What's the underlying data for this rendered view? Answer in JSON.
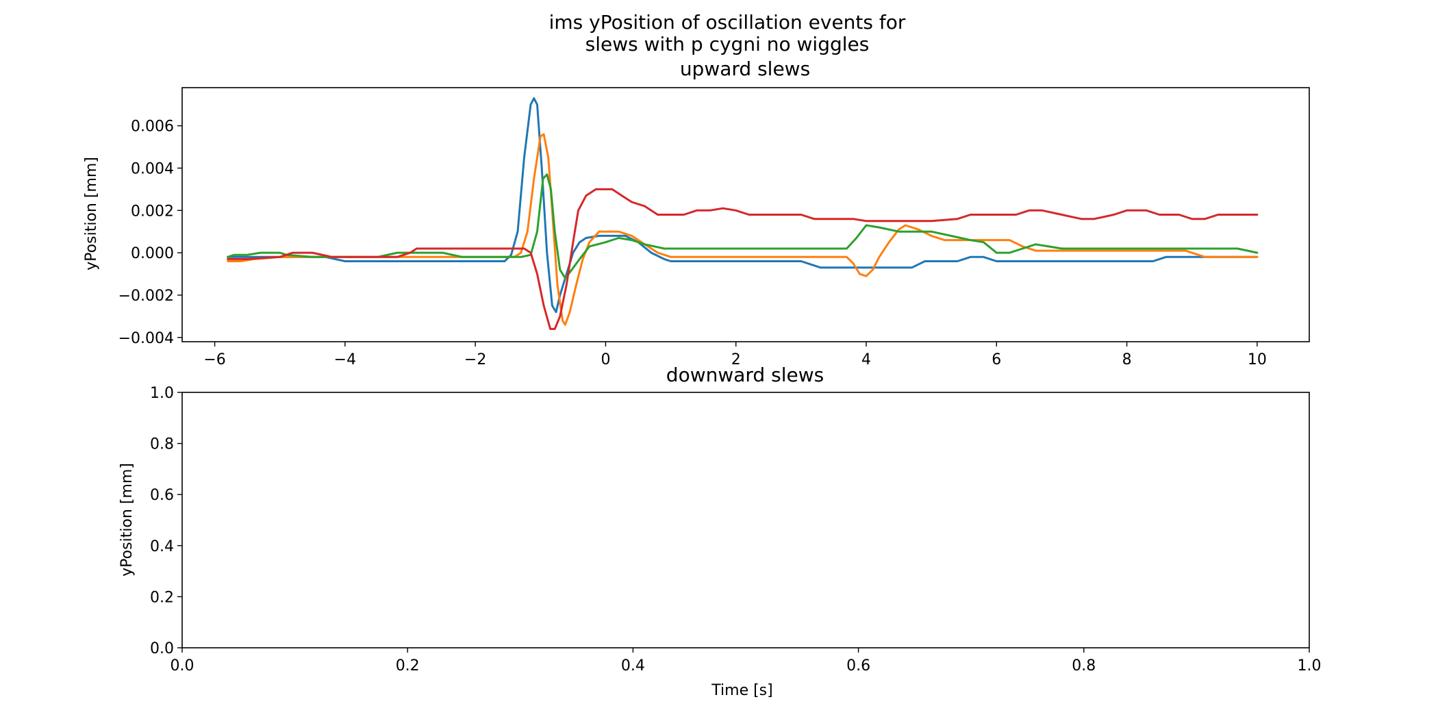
{
  "figure": {
    "title_line1": "ims yPosition of oscillation events for",
    "title_line2": "slews with p cygni no wiggles"
  },
  "chart_data": [
    {
      "type": "line",
      "title": "upward slews",
      "xlabel": "",
      "ylabel": "yPosition [mm]",
      "xlim": [
        -6.5,
        10.8
      ],
      "ylim": [
        -0.0042,
        0.0078
      ],
      "x_ticks": [
        -6,
        -4,
        -2,
        0,
        2,
        4,
        6,
        8,
        10
      ],
      "x_tick_labels": [
        "−6",
        "−4",
        "−2",
        "0",
        "2",
        "4",
        "6",
        "8",
        "10"
      ],
      "y_ticks": [
        -0.004,
        -0.002,
        0.0,
        0.002,
        0.004,
        0.006
      ],
      "y_tick_labels": [
        "−0.004",
        "−0.002",
        "0.000",
        "0.002",
        "0.004",
        "0.006"
      ],
      "grid": false,
      "series": [
        {
          "color": "#1f77b4",
          "points": [
            [
              -5.8,
              -0.0002
            ],
            [
              -5.7,
              -0.0002
            ],
            [
              -5.0,
              -0.0002
            ],
            [
              -4.3,
              -0.0002
            ],
            [
              -4.0,
              -0.0004
            ],
            [
              -3.0,
              -0.0004
            ],
            [
              -2.0,
              -0.0004
            ],
            [
              -1.55,
              -0.0004
            ],
            [
              -1.45,
              -0.0001
            ],
            [
              -1.35,
              0.001
            ],
            [
              -1.25,
              0.0045
            ],
            [
              -1.15,
              0.007
            ],
            [
              -1.1,
              0.0073
            ],
            [
              -1.05,
              0.007
            ],
            [
              -0.98,
              0.004
            ],
            [
              -0.9,
              0.0
            ],
            [
              -0.82,
              -0.0025
            ],
            [
              -0.76,
              -0.0028
            ],
            [
              -0.7,
              -0.002
            ],
            [
              -0.6,
              -0.001
            ],
            [
              -0.5,
              0.0
            ],
            [
              -0.4,
              0.0005
            ],
            [
              -0.3,
              0.0007
            ],
            [
              -0.1,
              0.0008
            ],
            [
              0.3,
              0.0008
            ],
            [
              0.5,
              0.0005
            ],
            [
              0.7,
              0.0
            ],
            [
              0.9,
              -0.0003
            ],
            [
              1.0,
              -0.0004
            ],
            [
              2.0,
              -0.0004
            ],
            [
              3.0,
              -0.0004
            ],
            [
              3.3,
              -0.0007
            ],
            [
              4.0,
              -0.0007
            ],
            [
              4.7,
              -0.0007
            ],
            [
              4.9,
              -0.0004
            ],
            [
              5.4,
              -0.0004
            ],
            [
              5.6,
              -0.0002
            ],
            [
              5.8,
              -0.0002
            ],
            [
              6.0,
              -0.0004
            ],
            [
              7.0,
              -0.0004
            ],
            [
              8.0,
              -0.0004
            ],
            [
              8.4,
              -0.0004
            ],
            [
              8.6,
              -0.0002
            ],
            [
              10.0,
              -0.0002
            ]
          ]
        },
        {
          "color": "#ff7f0e",
          "points": [
            [
              -5.8,
              -0.0004
            ],
            [
              -5.6,
              -0.0004
            ],
            [
              -5.4,
              -0.0003
            ],
            [
              -5.0,
              -0.0002
            ],
            [
              -4.0,
              -0.0002
            ],
            [
              -3.0,
              -0.0002
            ],
            [
              -2.0,
              -0.0002
            ],
            [
              -1.4,
              -0.0002
            ],
            [
              -1.3,
              0.0
            ],
            [
              -1.2,
              0.001
            ],
            [
              -1.1,
              0.0035
            ],
            [
              -1.0,
              0.0055
            ],
            [
              -0.95,
              0.0056
            ],
            [
              -0.88,
              0.0045
            ],
            [
              -0.82,
              0.002
            ],
            [
              -0.74,
              -0.0015
            ],
            [
              -0.66,
              -0.0032
            ],
            [
              -0.62,
              -0.0034
            ],
            [
              -0.55,
              -0.0028
            ],
            [
              -0.45,
              -0.0015
            ],
            [
              -0.35,
              -0.0003
            ],
            [
              -0.25,
              0.0005
            ],
            [
              -0.1,
              0.001
            ],
            [
              0.2,
              0.001
            ],
            [
              0.4,
              0.0008
            ],
            [
              0.6,
              0.0004
            ],
            [
              0.8,
              0.0
            ],
            [
              1.0,
              -0.0002
            ],
            [
              2.0,
              -0.0002
            ],
            [
              3.0,
              -0.0002
            ],
            [
              3.7,
              -0.0002
            ],
            [
              3.8,
              -0.0005
            ],
            [
              3.9,
              -0.001
            ],
            [
              4.0,
              -0.0011
            ],
            [
              4.1,
              -0.0008
            ],
            [
              4.2,
              -0.0002
            ],
            [
              4.35,
              0.0005
            ],
            [
              4.5,
              0.0011
            ],
            [
              4.6,
              0.0013
            ],
            [
              4.8,
              0.0011
            ],
            [
              5.0,
              0.0008
            ],
            [
              5.2,
              0.0006
            ],
            [
              5.6,
              0.0006
            ],
            [
              6.2,
              0.0006
            ],
            [
              6.4,
              0.0003
            ],
            [
              6.6,
              0.0001
            ],
            [
              7.0,
              0.0001
            ],
            [
              8.0,
              0.0001
            ],
            [
              8.9,
              0.0001
            ],
            [
              9.2,
              -0.0002
            ],
            [
              10.0,
              -0.0002
            ]
          ]
        },
        {
          "color": "#2ca02c",
          "points": [
            [
              -5.8,
              -0.0002
            ],
            [
              -5.7,
              -0.0001
            ],
            [
              -5.5,
              -0.0001
            ],
            [
              -5.3,
              0.0
            ],
            [
              -5.0,
              0.0
            ],
            [
              -4.9,
              -0.0001
            ],
            [
              -4.5,
              -0.0002
            ],
            [
              -4.0,
              -0.0002
            ],
            [
              -3.5,
              -0.0002
            ],
            [
              -3.2,
              0.0
            ],
            [
              -2.5,
              0.0
            ],
            [
              -2.2,
              -0.0002
            ],
            [
              -1.8,
              -0.0002
            ],
            [
              -1.3,
              -0.0002
            ],
            [
              -1.15,
              -0.0001
            ],
            [
              -1.05,
              0.001
            ],
            [
              -0.96,
              0.0035
            ],
            [
              -0.9,
              0.0037
            ],
            [
              -0.84,
              0.003
            ],
            [
              -0.78,
              0.001
            ],
            [
              -0.7,
              -0.0008
            ],
            [
              -0.62,
              -0.0012
            ],
            [
              -0.52,
              -0.0008
            ],
            [
              -0.4,
              -0.0003
            ],
            [
              -0.25,
              0.0003
            ],
            [
              0.0,
              0.0005
            ],
            [
              0.2,
              0.0007
            ],
            [
              0.4,
              0.0006
            ],
            [
              0.6,
              0.0004
            ],
            [
              0.9,
              0.0002
            ],
            [
              2.0,
              0.0002
            ],
            [
              3.0,
              0.0002
            ],
            [
              3.7,
              0.0002
            ],
            [
              3.85,
              0.0007
            ],
            [
              4.0,
              0.0013
            ],
            [
              4.2,
              0.0012
            ],
            [
              4.5,
              0.001
            ],
            [
              5.0,
              0.001
            ],
            [
              5.3,
              0.0008
            ],
            [
              5.6,
              0.0006
            ],
            [
              5.8,
              0.0005
            ],
            [
              6.0,
              0.0
            ],
            [
              6.2,
              0.0
            ],
            [
              6.4,
              0.0002
            ],
            [
              6.6,
              0.0004
            ],
            [
              6.8,
              0.0003
            ],
            [
              7.0,
              0.0002
            ],
            [
              8.0,
              0.0002
            ],
            [
              9.0,
              0.0002
            ],
            [
              9.7,
              0.0002
            ],
            [
              10.0,
              0.0
            ]
          ]
        },
        {
          "color": "#d62728",
          "points": [
            [
              -5.8,
              -0.0003
            ],
            [
              -5.5,
              -0.0003
            ],
            [
              -5.0,
              -0.0002
            ],
            [
              -4.8,
              0.0
            ],
            [
              -4.5,
              0.0
            ],
            [
              -4.2,
              -0.0002
            ],
            [
              -3.5,
              -0.0002
            ],
            [
              -3.2,
              -0.0002
            ],
            [
              -3.0,
              0.0
            ],
            [
              -2.9,
              0.0002
            ],
            [
              -2.5,
              0.0002
            ],
            [
              -2.0,
              0.0002
            ],
            [
              -1.5,
              0.0002
            ],
            [
              -1.25,
              0.0002
            ],
            [
              -1.15,
              0.0
            ],
            [
              -1.05,
              -0.001
            ],
            [
              -0.95,
              -0.0025
            ],
            [
              -0.85,
              -0.0036
            ],
            [
              -0.78,
              -0.0036
            ],
            [
              -0.7,
              -0.003
            ],
            [
              -0.6,
              -0.0015
            ],
            [
              -0.5,
              0.0005
            ],
            [
              -0.42,
              0.002
            ],
            [
              -0.3,
              0.0027
            ],
            [
              -0.15,
              0.003
            ],
            [
              0.1,
              0.003
            ],
            [
              0.25,
              0.0027
            ],
            [
              0.4,
              0.0024
            ],
            [
              0.6,
              0.0022
            ],
            [
              0.8,
              0.0018
            ],
            [
              1.2,
              0.0018
            ],
            [
              1.4,
              0.002
            ],
            [
              1.6,
              0.002
            ],
            [
              1.8,
              0.0021
            ],
            [
              2.0,
              0.002
            ],
            [
              2.2,
              0.0018
            ],
            [
              3.0,
              0.0018
            ],
            [
              3.2,
              0.0016
            ],
            [
              3.8,
              0.0016
            ],
            [
              4.0,
              0.0015
            ],
            [
              5.0,
              0.0015
            ],
            [
              5.4,
              0.0016
            ],
            [
              5.6,
              0.0018
            ],
            [
              6.0,
              0.0018
            ],
            [
              6.3,
              0.0018
            ],
            [
              6.5,
              0.002
            ],
            [
              6.7,
              0.002
            ],
            [
              7.0,
              0.0018
            ],
            [
              7.3,
              0.0016
            ],
            [
              7.5,
              0.0016
            ],
            [
              7.8,
              0.0018
            ],
            [
              8.0,
              0.002
            ],
            [
              8.3,
              0.002
            ],
            [
              8.5,
              0.0018
            ],
            [
              8.8,
              0.0018
            ],
            [
              9.0,
              0.0016
            ],
            [
              9.2,
              0.0016
            ],
            [
              9.4,
              0.0018
            ],
            [
              10.0,
              0.0018
            ]
          ]
        }
      ]
    },
    {
      "type": "line",
      "title": "downward slews",
      "xlabel": "Time [s]",
      "ylabel": "yPosition [mm]",
      "xlim": [
        0.0,
        1.0
      ],
      "ylim": [
        0.0,
        1.0
      ],
      "x_ticks": [
        0.0,
        0.2,
        0.4,
        0.6,
        0.8,
        1.0
      ],
      "x_tick_labels": [
        "0.0",
        "0.2",
        "0.4",
        "0.6",
        "0.8",
        "1.0"
      ],
      "y_ticks": [
        0.0,
        0.2,
        0.4,
        0.6,
        0.8,
        1.0
      ],
      "y_tick_labels": [
        "0.0",
        "0.2",
        "0.4",
        "0.6",
        "0.8",
        "1.0"
      ],
      "grid": false,
      "series": []
    }
  ]
}
